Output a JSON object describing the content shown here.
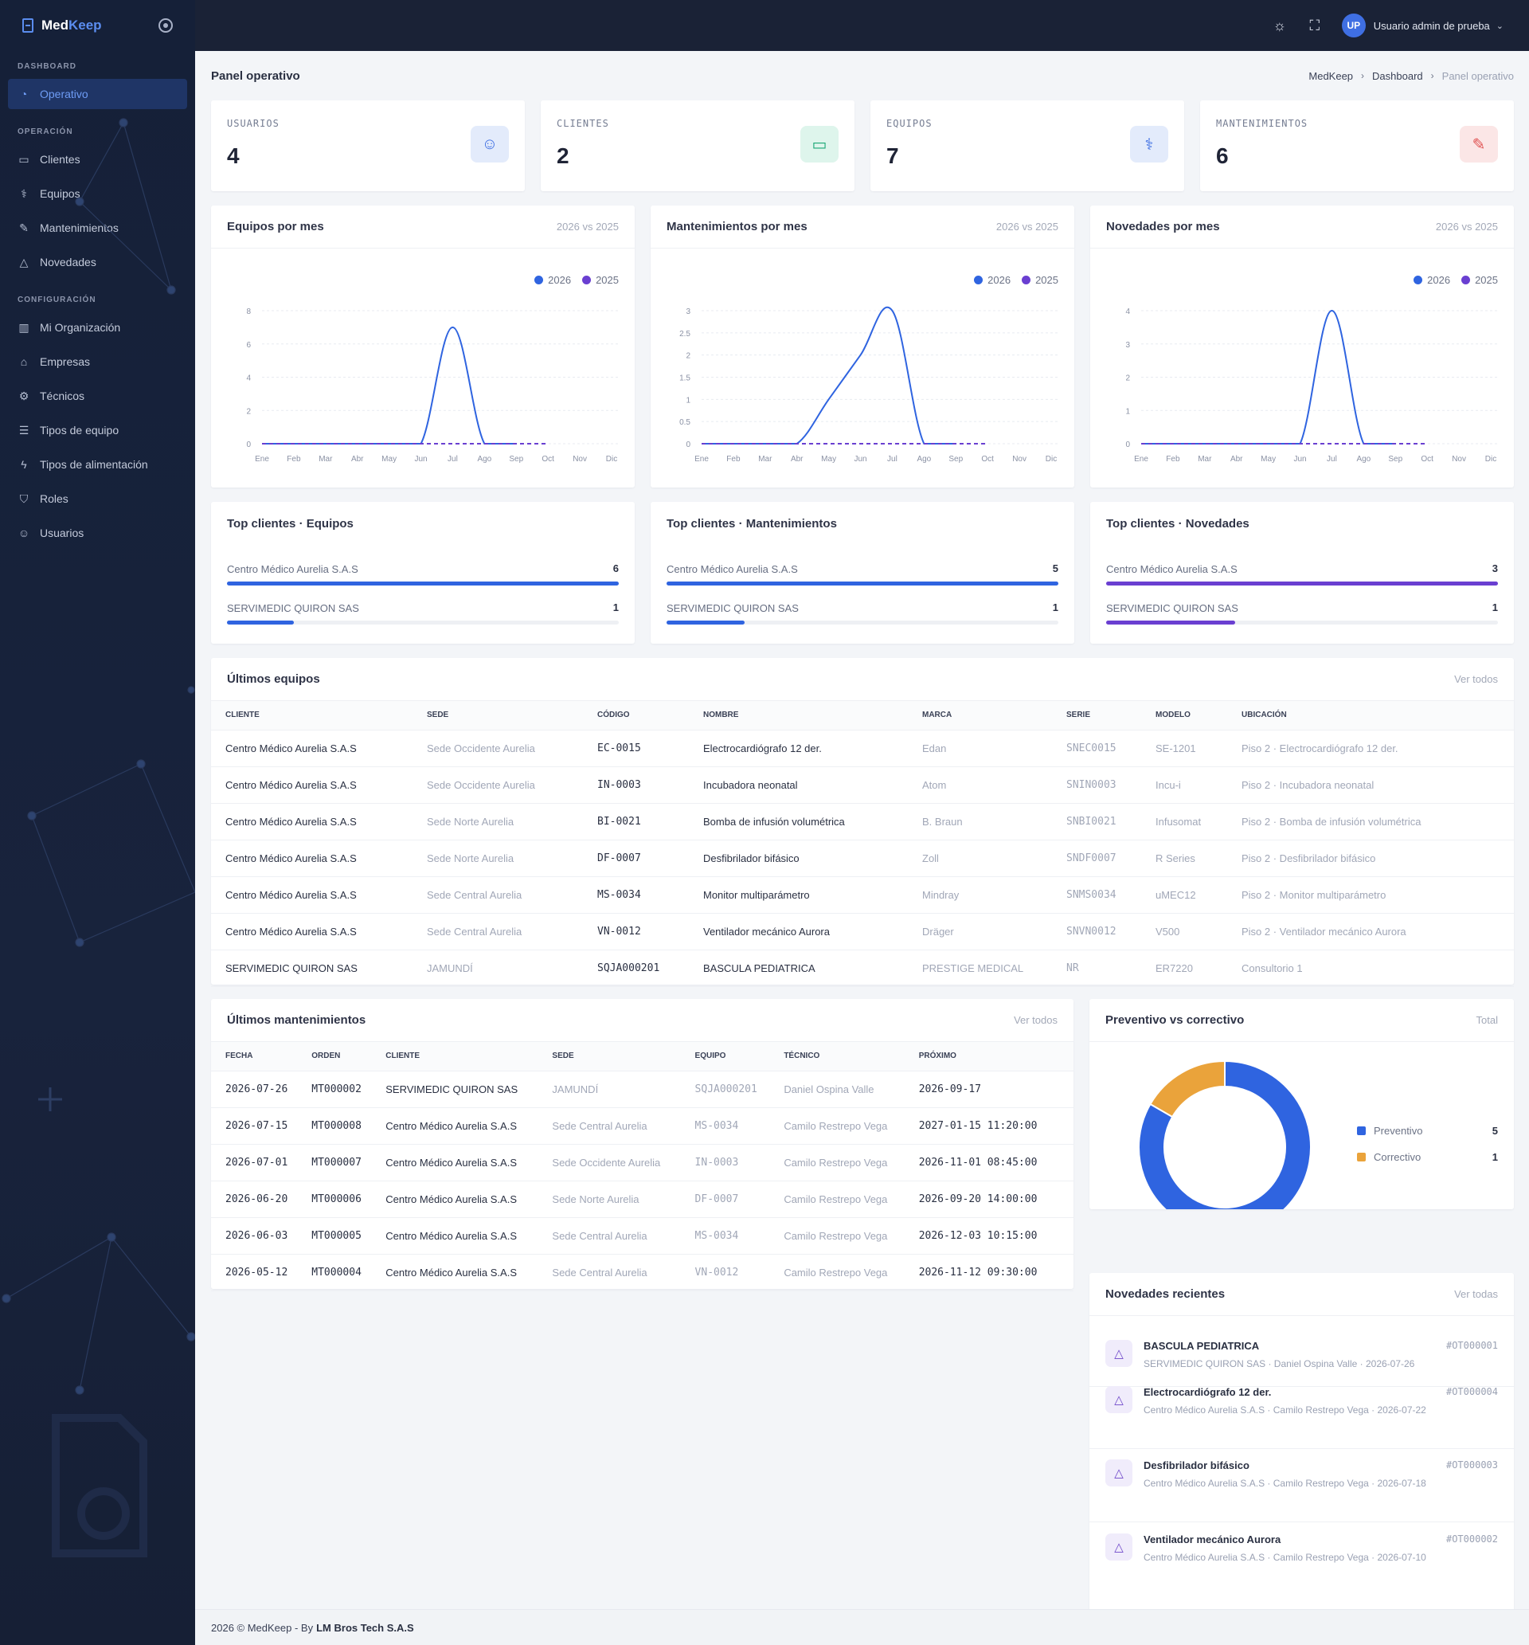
{
  "brand": {
    "med": "Med",
    "keep": "Keep"
  },
  "sidebar": {
    "sections": [
      {
        "title": "DASHBOARD",
        "items": [
          {
            "label": "Operativo",
            "icon": "gauge-icon",
            "active": true
          }
        ]
      },
      {
        "title": "OPERACIÓN",
        "items": [
          {
            "label": "Clientes",
            "icon": "briefcase-icon"
          },
          {
            "label": "Equipos",
            "icon": "stethoscope-icon"
          },
          {
            "label": "Mantenimientos",
            "icon": "wrench-icon"
          },
          {
            "label": "Novedades",
            "icon": "alert-triangle-icon"
          }
        ]
      },
      {
        "title": "CONFIGURACIÓN",
        "items": [
          {
            "label": "Mi Organización",
            "icon": "building-icon"
          },
          {
            "label": "Empresas",
            "icon": "store-icon"
          },
          {
            "label": "Técnicos",
            "icon": "user-gear-icon"
          },
          {
            "label": "Tipos de equipo",
            "icon": "database-icon"
          },
          {
            "label": "Tipos de alimentación",
            "icon": "plug-icon"
          },
          {
            "label": "Roles",
            "icon": "shield-icon"
          },
          {
            "label": "Usuarios",
            "icon": "users-icon"
          }
        ]
      }
    ]
  },
  "topbar": {
    "avatar": "UP",
    "user": "Usuario admin de prueba"
  },
  "page": {
    "title": "Panel operativo",
    "breadcrumb": [
      "MedKeep",
      "Dashboard",
      "Panel operativo"
    ]
  },
  "stats": [
    {
      "label": "USUARIOS",
      "value": "4",
      "icon": "users-icon",
      "bg": "#e3ebfb",
      "color": "#3f6fe3"
    },
    {
      "label": "CLIENTES",
      "value": "2",
      "icon": "briefcase-icon",
      "bg": "#def5ec",
      "color": "#1ba876"
    },
    {
      "label": "EQUIPOS",
      "value": "7",
      "icon": "stethoscope-icon",
      "bg": "#e3ebfb",
      "color": "#3f6fe3"
    },
    {
      "label": "MANTENIMIENTOS",
      "value": "6",
      "icon": "wrench-icon",
      "bg": "#fbe6e6",
      "color": "#e05252"
    }
  ],
  "colors": {
    "y2026": "#2f64e0",
    "y2025": "#6a3fd1",
    "preventivo": "#2f64e0",
    "correctivo": "#eaa33b"
  },
  "chart_data": [
    {
      "type": "line",
      "title": "Equipos por mes",
      "subtitle": "2026 vs 2025",
      "categories": [
        "Ene",
        "Feb",
        "Mar",
        "Abr",
        "May",
        "Jun",
        "Jul",
        "Ago",
        "Sep",
        "Oct",
        "Nov",
        "Dic"
      ],
      "ylim": [
        0,
        8
      ],
      "yticks": [
        "0",
        "2",
        "4",
        "6",
        "8"
      ],
      "series": [
        {
          "name": "2026",
          "values": [
            0,
            0,
            0,
            0,
            0,
            0,
            7,
            0,
            0,
            null,
            null,
            null
          ]
        },
        {
          "name": "2025",
          "values": [
            0,
            0,
            0,
            0,
            0,
            0,
            0,
            0,
            0,
            0,
            null,
            null
          ]
        }
      ]
    },
    {
      "type": "line",
      "title": "Mantenimientos por mes",
      "subtitle": "2026 vs 2025",
      "categories": [
        "Ene",
        "Feb",
        "Mar",
        "Abr",
        "May",
        "Jun",
        "Jul",
        "Ago",
        "Sep",
        "Oct",
        "Nov",
        "Dic"
      ],
      "ylim": [
        0,
        3
      ],
      "yticks": [
        "0",
        "0.5",
        "1",
        "1.5",
        "2",
        "2.5",
        "3"
      ],
      "series": [
        {
          "name": "2026",
          "values": [
            0,
            0,
            0,
            0,
            1,
            2,
            3,
            0,
            0,
            null,
            null,
            null
          ]
        },
        {
          "name": "2025",
          "values": [
            0,
            0,
            0,
            0,
            0,
            0,
            0,
            0,
            0,
            0,
            null,
            null
          ]
        }
      ]
    },
    {
      "type": "line",
      "title": "Novedades por mes",
      "subtitle": "2026 vs 2025",
      "categories": [
        "Ene",
        "Feb",
        "Mar",
        "Abr",
        "May",
        "Jun",
        "Jul",
        "Ago",
        "Sep",
        "Oct",
        "Nov",
        "Dic"
      ],
      "ylim": [
        0,
        4
      ],
      "yticks": [
        "0",
        "1",
        "2",
        "3",
        "4"
      ],
      "series": [
        {
          "name": "2026",
          "values": [
            0,
            0,
            0,
            0,
            0,
            0,
            4,
            0,
            0,
            null,
            null,
            null
          ]
        },
        {
          "name": "2025",
          "values": [
            0,
            0,
            0,
            0,
            0,
            0,
            0,
            0,
            0,
            0,
            null,
            null
          ]
        }
      ]
    },
    {
      "type": "pie",
      "title": "Preventivo vs correctivo",
      "subtitle": "Total",
      "categories": [
        "Preventivo",
        "Correctivo"
      ],
      "values": [
        5,
        1
      ]
    }
  ],
  "top": [
    {
      "title": "Top clientes · Equipos",
      "color": "#2f64e0",
      "rows": [
        {
          "label": "Centro Médico Aurelia S.A.S",
          "value": 6,
          "fraction": 1.0
        },
        {
          "label": "SERVIMEDIC QUIRON SAS",
          "value": 1,
          "fraction": 0.17
        }
      ]
    },
    {
      "title": "Top clientes · Mantenimientos",
      "color": "#2f64e0",
      "rows": [
        {
          "label": "Centro Médico Aurelia S.A.S",
          "value": 5,
          "fraction": 1.0
        },
        {
          "label": "SERVIMEDIC QUIRON SAS",
          "value": 1,
          "fraction": 0.2
        }
      ]
    },
    {
      "title": "Top clientes · Novedades",
      "color": "#6a3fd1",
      "rows": [
        {
          "label": "Centro Médico Aurelia S.A.S",
          "value": 3,
          "fraction": 1.0
        },
        {
          "label": "SERVIMEDIC QUIRON SAS",
          "value": 1,
          "fraction": 0.33
        }
      ]
    }
  ],
  "equipos": {
    "title": "Últimos equipos",
    "link": "Ver todos",
    "columns": [
      "CLIENTE",
      "SEDE",
      "CÓDIGO",
      "NOMBRE",
      "MARCA",
      "SERIE",
      "MODELO",
      "UBICACIÓN"
    ],
    "rows": [
      [
        "Centro Médico Aurelia S.A.S",
        "Sede Occidente Aurelia",
        "EC-0015",
        "Electrocardiógrafo 12 der.",
        "Edan",
        "SNEC0015",
        "SE-1201",
        "Piso 2 · Electrocardiógrafo 12 der."
      ],
      [
        "Centro Médico Aurelia S.A.S",
        "Sede Occidente Aurelia",
        "IN-0003",
        "Incubadora neonatal",
        "Atom",
        "SNIN0003",
        "Incu-i",
        "Piso 2 · Incubadora neonatal"
      ],
      [
        "Centro Médico Aurelia S.A.S",
        "Sede Norte Aurelia",
        "BI-0021",
        "Bomba de infusión volumétrica",
        "B. Braun",
        "SNBI0021",
        "Infusomat",
        "Piso 2 · Bomba de infusión volumétrica"
      ],
      [
        "Centro Médico Aurelia S.A.S",
        "Sede Norte Aurelia",
        "DF-0007",
        "Desfibrilador bifásico",
        "Zoll",
        "SNDF0007",
        "R Series",
        "Piso 2 · Desfibrilador bifásico"
      ],
      [
        "Centro Médico Aurelia S.A.S",
        "Sede Central Aurelia",
        "MS-0034",
        "Monitor multiparámetro",
        "Mindray",
        "SNMS0034",
        "uMEC12",
        "Piso 2 · Monitor multiparámetro"
      ],
      [
        "Centro Médico Aurelia S.A.S",
        "Sede Central Aurelia",
        "VN-0012",
        "Ventilador mecánico Aurora",
        "Dräger",
        "SNVN0012",
        "V500",
        "Piso 2 · Ventilador mecánico Aurora"
      ],
      [
        "SERVIMEDIC QUIRON SAS",
        "JAMUNDÍ",
        "SQJA000201",
        "BASCULA PEDIATRICA",
        "PRESTIGE MEDICAL",
        "NR",
        "ER7220",
        "Consultorio 1"
      ]
    ]
  },
  "mantenimientos": {
    "title": "Últimos mantenimientos",
    "link": "Ver todos",
    "columns": [
      "FECHA",
      "ORDEN",
      "CLIENTE",
      "SEDE",
      "EQUIPO",
      "TÉCNICO",
      "PRÓXIMO"
    ],
    "rows": [
      [
        "2026-07-26",
        "MT000002",
        "SERVIMEDIC QUIRON SAS",
        "JAMUNDÍ",
        "SQJA000201",
        "Daniel Ospina Valle",
        "2026-09-17"
      ],
      [
        "2026-07-15",
        "MT000008",
        "Centro Médico Aurelia S.A.S",
        "Sede Central Aurelia",
        "MS-0034",
        "Camilo Restrepo Vega",
        "2027-01-15 11:20:00"
      ],
      [
        "2026-07-01",
        "MT000007",
        "Centro Médico Aurelia S.A.S",
        "Sede Occidente Aurelia",
        "IN-0003",
        "Camilo Restrepo Vega",
        "2026-11-01 08:45:00"
      ],
      [
        "2026-06-20",
        "MT000006",
        "Centro Médico Aurelia S.A.S",
        "Sede Norte Aurelia",
        "DF-0007",
        "Camilo Restrepo Vega",
        "2026-09-20 14:00:00"
      ],
      [
        "2026-06-03",
        "MT000005",
        "Centro Médico Aurelia S.A.S",
        "Sede Central Aurelia",
        "MS-0034",
        "Camilo Restrepo Vega",
        "2026-12-03 10:15:00"
      ],
      [
        "2026-05-12",
        "MT000004",
        "Centro Médico Aurelia S.A.S",
        "Sede Central Aurelia",
        "VN-0012",
        "Camilo Restrepo Vega",
        "2026-11-12 09:30:00"
      ]
    ]
  },
  "novedades": {
    "title": "Novedades recientes",
    "link": "Ver todas",
    "items": [
      {
        "title": "BASCULA PEDIATRICA",
        "meta": "SERVIMEDIC QUIRON SAS · Daniel Ospina Valle · 2026-07-26",
        "code": "#OT000001"
      },
      {
        "title": "Electrocardiógrafo 12 der.",
        "meta": "Centro Médico Aurelia S.A.S · Camilo Restrepo Vega · 2026-07-22",
        "code": "#OT000004"
      },
      {
        "title": "Desfibrilador bifásico",
        "meta": "Centro Médico Aurelia S.A.S · Camilo Restrepo Vega · 2026-07-18",
        "code": "#OT000003"
      },
      {
        "title": "Ventilador mecánico Aurora",
        "meta": "Centro Médico Aurelia S.A.S · Camilo Restrepo Vega · 2026-07-10",
        "code": "#OT000002"
      }
    ]
  },
  "footer": {
    "text": "2026 © MedKeep - By",
    "company": "LM Bros Tech S.A.S"
  }
}
